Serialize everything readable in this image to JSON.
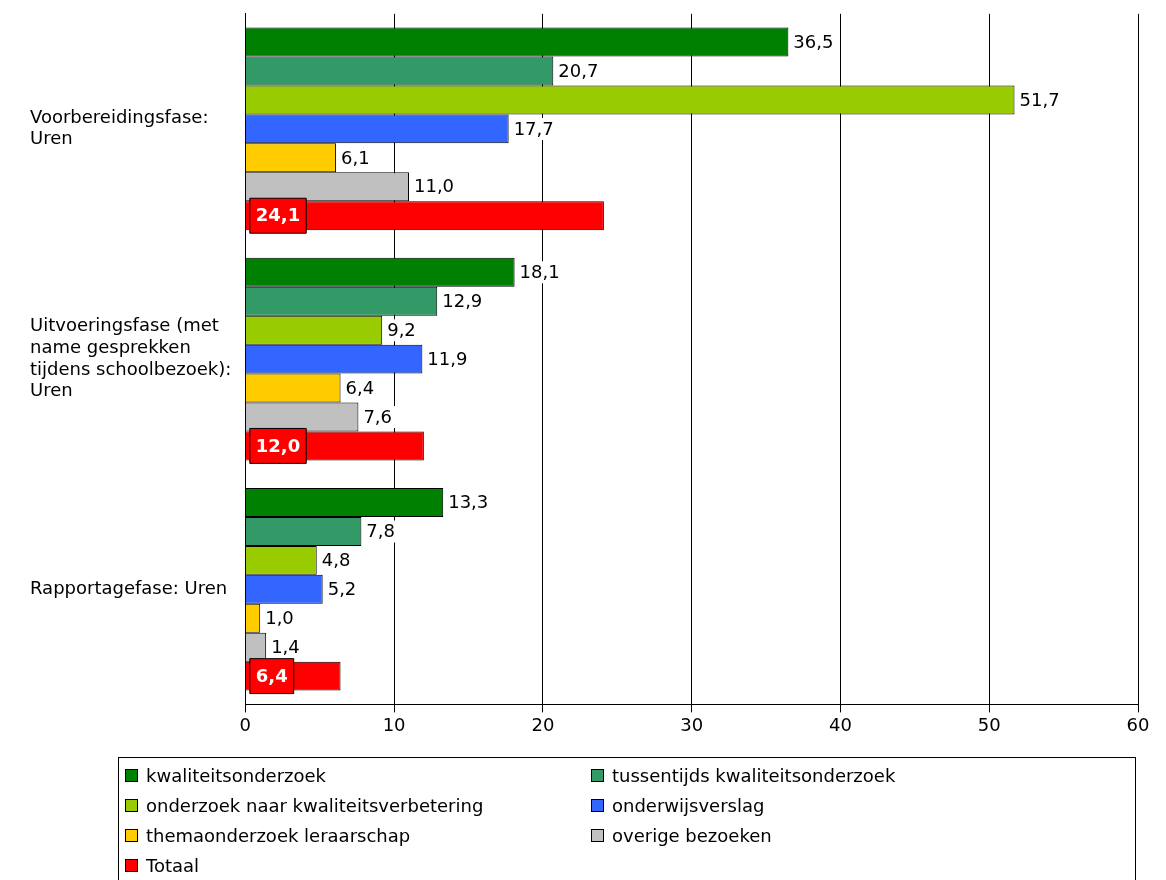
{
  "chart_data": {
    "type": "bar",
    "orientation": "horizontal",
    "categories": [
      "Voorbereidingsfase: Uren",
      "Uitvoeringsfase (met name gesprekken tijdens schoolbezoek): Uren",
      "Rapportagefase: Uren"
    ],
    "series": [
      {
        "name": "kwaliteitsonderzoek",
        "color": "#008000",
        "values": [
          36.5,
          18.1,
          13.3
        ],
        "value_labels": [
          "36,5",
          "18,1",
          "13,3"
        ]
      },
      {
        "name": "tussentijds kwaliteitsonderzoek",
        "color": "#339966",
        "values": [
          20.7,
          12.9,
          7.8
        ],
        "value_labels": [
          "20,7",
          "12,9",
          "7,8"
        ]
      },
      {
        "name": "onderzoek naar kwaliteitsverbetering",
        "color": "#99cc00",
        "values": [
          51.7,
          9.2,
          4.8
        ],
        "value_labels": [
          "51,7",
          "9,2",
          "4,8"
        ]
      },
      {
        "name": "onderwijsverslag",
        "color": "#3366ff",
        "values": [
          17.7,
          11.9,
          5.2
        ],
        "value_labels": [
          "17,7",
          "11,9",
          "5,2"
        ]
      },
      {
        "name": "themaonderzoek leraarschap",
        "color": "#ffcc00",
        "values": [
          6.1,
          6.4,
          1.0
        ],
        "value_labels": [
          "6,1",
          "6,4",
          "1,0"
        ]
      },
      {
        "name": "overige bezoeken",
        "color": "#c0c0c0",
        "values": [
          11.0,
          7.6,
          1.4
        ],
        "value_labels": [
          "11,0",
          "7,6",
          "1,4"
        ]
      },
      {
        "name": "Totaal",
        "color": "#ff0000",
        "values": [
          24.1,
          12.0,
          6.4
        ],
        "value_labels": [
          "24,1",
          "12,0",
          "6,4"
        ]
      }
    ],
    "xlim": [
      0,
      60
    ],
    "xticks": [
      0,
      10,
      20,
      30,
      40,
      50,
      60
    ],
    "grid": "x",
    "legend": "bottom"
  }
}
